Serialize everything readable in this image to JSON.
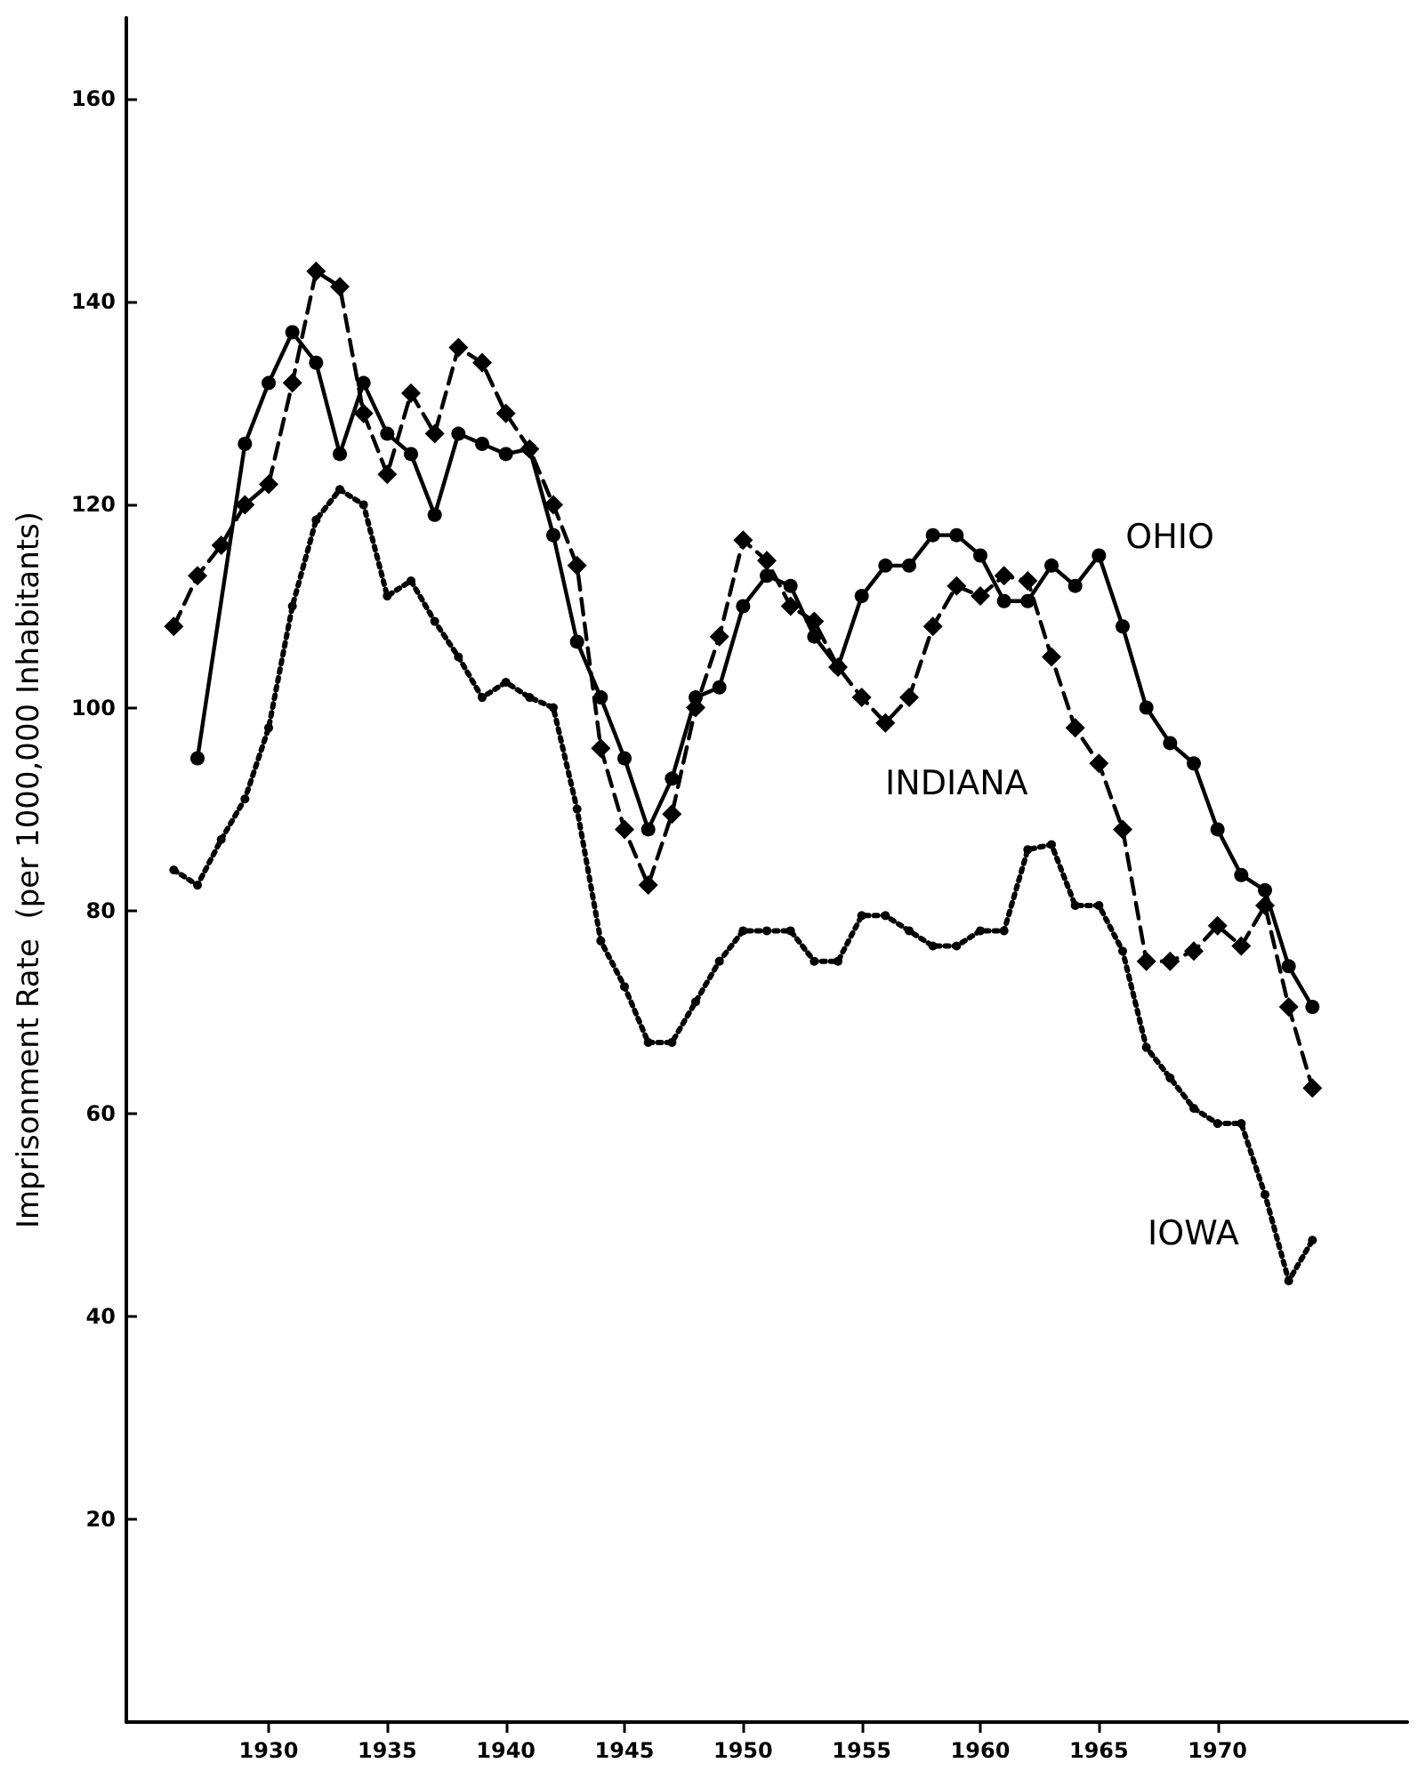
{
  "chart_data": {
    "type": "line",
    "ylabel": "Imprisonment Rate  (per 1000,000 Inhabitants)",
    "xlim": [
      1924,
      1978
    ],
    "xticks": [
      1930,
      1935,
      1940,
      1945,
      1950,
      1955,
      1960,
      1965,
      1970
    ],
    "ylim": [
      0,
      168
    ],
    "yticks": [
      20,
      40,
      60,
      80,
      100,
      120,
      140,
      160
    ],
    "grid": false,
    "legend": false,
    "series": [
      {
        "name": "OHIO",
        "color": "#000000",
        "marker": "circle",
        "line_style": "solid",
        "x": [
          1927,
          1929,
          1930,
          1931,
          1932,
          1933,
          1934,
          1935,
          1936,
          1937,
          1938,
          1939,
          1940,
          1941,
          1942,
          1943,
          1944,
          1945,
          1946,
          1947,
          1948,
          1949,
          1950,
          1951,
          1952,
          1953,
          1954,
          1955,
          1956,
          1957,
          1958,
          1959,
          1960,
          1961,
          1962,
          1963,
          1964,
          1965,
          1966,
          1967,
          1968,
          1969,
          1970,
          1971,
          1972,
          1973,
          1974
        ],
        "values": [
          95,
          126,
          132,
          137,
          134,
          125,
          132,
          127,
          125,
          119,
          127,
          126,
          125,
          125.5,
          117,
          106.5,
          101,
          95,
          88,
          93,
          101,
          102,
          110,
          113,
          112,
          107,
          104,
          111,
          114,
          114,
          117,
          117,
          115,
          110.5,
          110.5,
          114,
          112,
          115,
          108,
          100,
          96.5,
          94.5,
          88,
          83.5,
          82,
          74.5,
          70.5
        ]
      },
      {
        "name": "INDIANA",
        "color": "#000000",
        "marker": "diamond",
        "line_style": "dashed",
        "x": [
          1926,
          1927,
          1928,
          1929,
          1930,
          1931,
          1932,
          1933,
          1934,
          1935,
          1936,
          1937,
          1938,
          1939,
          1940,
          1941,
          1942,
          1943,
          1944,
          1945,
          1946,
          1947,
          1948,
          1949,
          1950,
          1951,
          1952,
          1953,
          1954,
          1955,
          1956,
          1957,
          1958,
          1959,
          1960,
          1961,
          1962,
          1963,
          1964,
          1965,
          1966,
          1967,
          1968,
          1969,
          1970,
          1971,
          1972,
          1973,
          1974
        ],
        "values": [
          108,
          113,
          116,
          120,
          122,
          132,
          143,
          141.5,
          129,
          123,
          131,
          127,
          135.5,
          134,
          129,
          125.5,
          120,
          114,
          96,
          88,
          82.5,
          89.5,
          100,
          107,
          116.5,
          114.5,
          110,
          108.5,
          104,
          101,
          98.5,
          101,
          108,
          112,
          111,
          113,
          112.5,
          105,
          98,
          94.5,
          88,
          75,
          75,
          76,
          78.5,
          76.5,
          80.5,
          70.5,
          62.5
        ]
      },
      {
        "name": "IOWA",
        "color": "#000000",
        "marker": "circle",
        "line_style": "dotted",
        "x": [
          1926,
          1927,
          1928,
          1929,
          1930,
          1931,
          1932,
          1933,
          1934,
          1935,
          1936,
          1937,
          1938,
          1939,
          1940,
          1941,
          1942,
          1943,
          1944,
          1945,
          1946,
          1947,
          1948,
          1949,
          1950,
          1951,
          1952,
          1953,
          1954,
          1955,
          1956,
          1957,
          1958,
          1959,
          1960,
          1961,
          1962,
          1963,
          1964,
          1965,
          1966,
          1967,
          1968,
          1969,
          1970,
          1971,
          1972,
          1973,
          1974
        ],
        "values": [
          84,
          82.5,
          87,
          91,
          98,
          110,
          118.5,
          121.5,
          120,
          111,
          112.5,
          108.5,
          105,
          101,
          102.5,
          101,
          100,
          90,
          77,
          72.5,
          67,
          67,
          71,
          75,
          78,
          78,
          78,
          75,
          75,
          79.5,
          79.5,
          78,
          76.5,
          76.5,
          78,
          78,
          86,
          86.5,
          80.5,
          80.5,
          76,
          66.5,
          63.5,
          60.5,
          59,
          59,
          52,
          43.5,
          47.5
        ]
      }
    ]
  }
}
